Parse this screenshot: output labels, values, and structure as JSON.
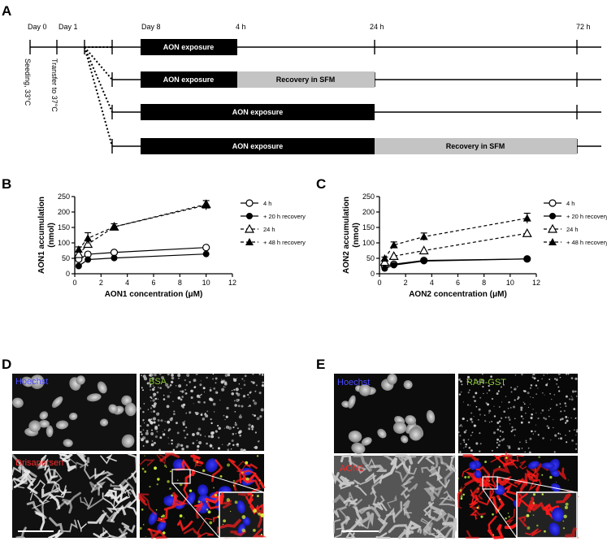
{
  "panel_labels": {
    "A": "A",
    "B": "B",
    "C": "C",
    "D": "D",
    "E": "E"
  },
  "timeline": {
    "markers": [
      "Day 0",
      "Day 1",
      "Day 8",
      "4 h",
      "24 h",
      "72 h"
    ],
    "side_labels": [
      "Seeding, 33°C",
      "Transfer to 37°C"
    ],
    "bars": {
      "exposure": "AON exposure",
      "recovery_sfm": "Recovery in SFM"
    },
    "colors": {
      "exposure": "#000000",
      "recovery": "#c4c4c4"
    }
  },
  "legend": [
    "4 h",
    "+ 20 h recovery",
    "24 h",
    "+ 48 h recovery"
  ],
  "chart_data": [
    {
      "type": "line",
      "ylabel_lines": [
        "AON1 accumulation",
        "(nmol)"
      ],
      "xlabel": "AON1 concentration (μM)",
      "xlim": [
        0,
        12
      ],
      "ylim": [
        0,
        250
      ],
      "xticks": [
        0,
        2,
        4,
        6,
        8,
        10,
        12
      ],
      "yticks": [
        0,
        50,
        100,
        150,
        200,
        250
      ],
      "x": [
        0.3,
        1,
        3,
        10
      ],
      "series": [
        {
          "name": "4 h",
          "marker": "circle-open",
          "dash": "solid",
          "values": [
            47,
            63,
            69,
            85
          ],
          "err": [
            0,
            0,
            0,
            0
          ]
        },
        {
          "name": "+ 20 h recovery",
          "marker": "circle-filled",
          "dash": "solid",
          "values": [
            25,
            46,
            51,
            64
          ],
          "err": [
            0,
            0,
            0,
            0
          ]
        },
        {
          "name": "24 h",
          "marker": "triangle-open",
          "dash": "dashed",
          "values": [
            63,
            96,
            152,
            225
          ],
          "err": [
            0,
            0,
            0,
            0
          ]
        },
        {
          "name": "+ 48 h recovery",
          "marker": "triangle-filled",
          "dash": "dashed",
          "values": [
            79,
            115,
            152,
            222
          ],
          "err": [
            8,
            18,
            10,
            15
          ]
        }
      ]
    },
    {
      "type": "line",
      "ylabel_lines": [
        "AON2 accumulation",
        "(nmol)"
      ],
      "xlabel": "AON2 concentration (μM)",
      "xlim": [
        0,
        12
      ],
      "ylim": [
        0,
        250
      ],
      "xticks": [
        0,
        2,
        4,
        6,
        8,
        10,
        12
      ],
      "yticks": [
        0,
        50,
        100,
        150,
        200,
        250
      ],
      "x": [
        0.4,
        1.1,
        3.4,
        11.3
      ],
      "series": [
        {
          "name": "4 h",
          "marker": "circle-open",
          "dash": "solid",
          "values": [
            24,
            31,
            43,
            48
          ],
          "err": [
            0,
            0,
            0,
            0
          ]
        },
        {
          "name": "+ 20 h recovery",
          "marker": "circle-filled",
          "dash": "solid",
          "values": [
            17,
            28,
            41,
            48
          ],
          "err": [
            0,
            0,
            0,
            0
          ]
        },
        {
          "name": "24 h",
          "marker": "triangle-open",
          "dash": "dashed",
          "values": [
            38,
            57,
            75,
            131
          ],
          "err": [
            0,
            0,
            0,
            0
          ]
        },
        {
          "name": "+ 48 h recovery",
          "marker": "triangle-filled",
          "dash": "dashed",
          "values": [
            50,
            93,
            120,
            180
          ],
          "err": [
            4,
            10,
            12,
            16
          ]
        }
      ]
    }
  ],
  "panel_d": {
    "channels": [
      {
        "label": "Hoechst",
        "color": "#4a4aff"
      },
      {
        "label": "BSA",
        "color": "#8ecb3a"
      },
      {
        "label": "Drisapersen",
        "color": "#ff2a2a"
      }
    ]
  },
  "panel_e": {
    "channels": [
      {
        "label": "Hoechst",
        "color": "#4a4aff"
      },
      {
        "label": "RAP-GST",
        "color": "#8ecb3a"
      },
      {
        "label": "AON1",
        "color": "#ff2a2a"
      }
    ]
  }
}
